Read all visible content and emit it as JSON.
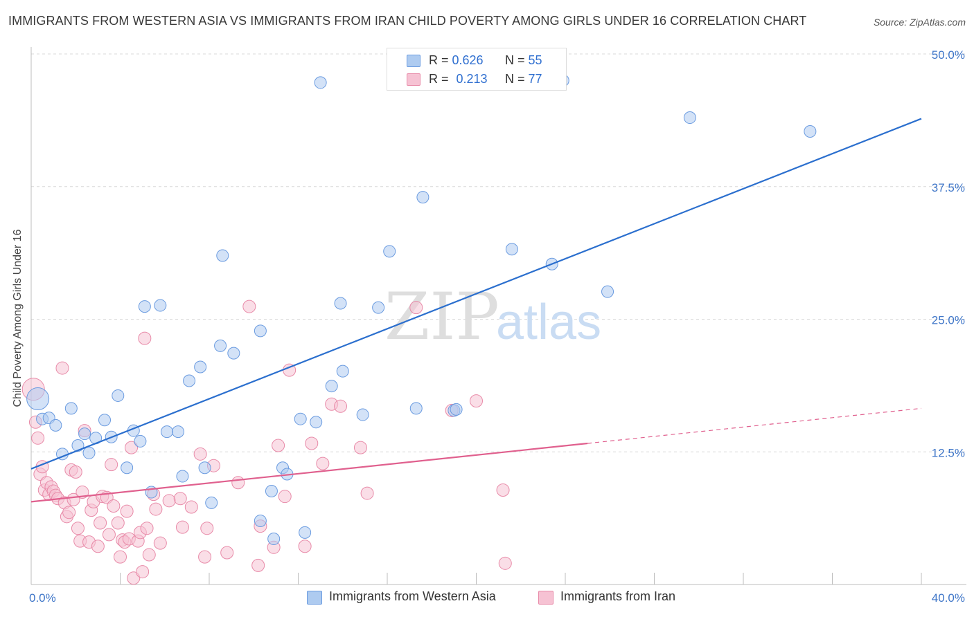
{
  "header": {
    "title": "IMMIGRANTS FROM WESTERN ASIA VS IMMIGRANTS FROM IRAN CHILD POVERTY AMONG GIRLS UNDER 16 CORRELATION CHART",
    "source": "Source: ZipAtlas.com"
  },
  "watermark": {
    "part1": "ZIP",
    "part2": "atlas"
  },
  "legend": {
    "rows": [
      {
        "r_label": "R = ",
        "r_value": "0.626",
        "n_label": "N = ",
        "n_value": "55"
      },
      {
        "r_label": "R = ",
        "r_value": "0.213",
        "n_label": "N = ",
        "n_value": "77"
      }
    ]
  },
  "bottom_legend": {
    "western_asia": "Immigrants from Western Asia",
    "iran": "Immigrants from Iran"
  },
  "colors": {
    "blue_fill": "#aecbf0",
    "blue_stroke": "#6a9be0",
    "blue_line": "#2b6fce",
    "pink_fill": "#f6c2d3",
    "pink_stroke": "#e88aa8",
    "pink_line": "#e0608e",
    "grid": "#d8d8d8",
    "axis_text": "#3f76c8"
  },
  "chart_data": {
    "type": "scatter",
    "title": "IMMIGRANTS FROM WESTERN ASIA VS IMMIGRANTS FROM IRAN CHILD POVERTY AMONG GIRLS UNDER 16 CORRELATION CHART",
    "xlabel": "",
    "ylabel": "Child Poverty Among Girls Under 16",
    "xlim": [
      0,
      40
    ],
    "ylim": [
      0,
      50
    ],
    "x_tick_labels": [
      "0.0%",
      "40.0%"
    ],
    "y_ticks": [
      12.5,
      25.0,
      37.5,
      50.0
    ],
    "y_tick_labels": [
      "12.5%",
      "25.0%",
      "37.5%",
      "50.0%"
    ],
    "grid": "horizontal dashed",
    "legend_position": "top-center",
    "series": [
      {
        "name": "Immigrants from Western Asia",
        "color": "#aecbf0",
        "trend": {
          "x": [
            0,
            40
          ],
          "y": [
            10.9,
            43.9
          ]
        },
        "points": [
          [
            0.3,
            17.5
          ],
          [
            0.5,
            15.6
          ],
          [
            0.8,
            15.7
          ],
          [
            1.1,
            15.0
          ],
          [
            1.4,
            12.3
          ],
          [
            1.8,
            16.6
          ],
          [
            2.1,
            13.1
          ],
          [
            2.4,
            14.2
          ],
          [
            2.6,
            12.4
          ],
          [
            2.9,
            13.8
          ],
          [
            3.3,
            15.5
          ],
          [
            3.6,
            13.9
          ],
          [
            3.9,
            17.8
          ],
          [
            4.3,
            11.0
          ],
          [
            4.6,
            14.5
          ],
          [
            4.9,
            13.5
          ],
          [
            5.1,
            26.2
          ],
          [
            5.4,
            8.7
          ],
          [
            5.8,
            26.3
          ],
          [
            6.1,
            14.4
          ],
          [
            6.6,
            14.4
          ],
          [
            6.8,
            10.2
          ],
          [
            7.1,
            19.2
          ],
          [
            7.6,
            20.5
          ],
          [
            7.8,
            11.0
          ],
          [
            8.1,
            7.7
          ],
          [
            8.5,
            22.5
          ],
          [
            8.6,
            31.0
          ],
          [
            9.1,
            21.8
          ],
          [
            10.3,
            23.9
          ],
          [
            10.3,
            6.0
          ],
          [
            10.8,
            8.8
          ],
          [
            10.9,
            4.3
          ],
          [
            11.3,
            11.0
          ],
          [
            11.5,
            10.4
          ],
          [
            12.1,
            15.6
          ],
          [
            12.3,
            4.9
          ],
          [
            12.8,
            15.3
          ],
          [
            13.0,
            47.3
          ],
          [
            13.5,
            18.7
          ],
          [
            13.9,
            26.5
          ],
          [
            14.0,
            20.1
          ],
          [
            14.9,
            16.0
          ],
          [
            15.6,
            26.1
          ],
          [
            16.1,
            31.4
          ],
          [
            17.3,
            16.6
          ],
          [
            17.6,
            36.5
          ],
          [
            19.0,
            16.4
          ],
          [
            21.6,
            31.6
          ],
          [
            23.4,
            30.2
          ],
          [
            23.9,
            47.5
          ],
          [
            25.9,
            27.6
          ],
          [
            29.6,
            44.0
          ],
          [
            35.0,
            42.7
          ],
          [
            19.1,
            16.5
          ]
        ]
      },
      {
        "name": "Immigrants from Iran",
        "color": "#f6c2d3",
        "trend": {
          "x": [
            0,
            25
          ],
          "y": [
            7.8,
            13.3
          ]
        },
        "trend_dashed": {
          "x": [
            25,
            40
          ],
          "y": [
            13.3,
            16.6
          ]
        },
        "points": [
          [
            0.1,
            18.4
          ],
          [
            0.2,
            15.3
          ],
          [
            0.3,
            13.8
          ],
          [
            0.4,
            10.4
          ],
          [
            0.5,
            11.1
          ],
          [
            0.6,
            8.9
          ],
          [
            0.7,
            9.6
          ],
          [
            0.8,
            8.5
          ],
          [
            0.9,
            9.2
          ],
          [
            1.0,
            8.8
          ],
          [
            1.1,
            8.4
          ],
          [
            1.2,
            8.1
          ],
          [
            1.4,
            20.4
          ],
          [
            1.5,
            7.7
          ],
          [
            1.6,
            6.4
          ],
          [
            1.7,
            6.8
          ],
          [
            1.8,
            10.8
          ],
          [
            1.9,
            8.0
          ],
          [
            2.0,
            10.6
          ],
          [
            2.1,
            5.3
          ],
          [
            2.2,
            4.1
          ],
          [
            2.3,
            8.7
          ],
          [
            2.4,
            14.5
          ],
          [
            2.6,
            4.0
          ],
          [
            2.7,
            7.0
          ],
          [
            2.8,
            7.8
          ],
          [
            3.0,
            3.6
          ],
          [
            3.1,
            5.8
          ],
          [
            3.2,
            8.3
          ],
          [
            3.4,
            8.2
          ],
          [
            3.5,
            4.7
          ],
          [
            3.6,
            11.3
          ],
          [
            3.7,
            7.4
          ],
          [
            3.9,
            5.8
          ],
          [
            4.0,
            2.6
          ],
          [
            4.1,
            4.2
          ],
          [
            4.2,
            4.0
          ],
          [
            4.3,
            6.9
          ],
          [
            4.4,
            4.3
          ],
          [
            4.5,
            12.9
          ],
          [
            4.6,
            0.6
          ],
          [
            4.8,
            4.1
          ],
          [
            4.9,
            4.9
          ],
          [
            5.0,
            1.2
          ],
          [
            5.1,
            23.2
          ],
          [
            5.2,
            5.3
          ],
          [
            5.3,
            2.8
          ],
          [
            5.5,
            8.5
          ],
          [
            5.6,
            7.1
          ],
          [
            5.8,
            3.9
          ],
          [
            6.2,
            7.9
          ],
          [
            6.7,
            8.1
          ],
          [
            6.8,
            5.4
          ],
          [
            7.2,
            7.3
          ],
          [
            7.6,
            12.3
          ],
          [
            7.8,
            2.6
          ],
          [
            7.9,
            5.3
          ],
          [
            8.2,
            11.2
          ],
          [
            8.8,
            3.0
          ],
          [
            9.3,
            9.6
          ],
          [
            9.8,
            26.2
          ],
          [
            10.2,
            1.8
          ],
          [
            10.3,
            5.5
          ],
          [
            10.9,
            3.5
          ],
          [
            11.1,
            13.1
          ],
          [
            11.4,
            8.3
          ],
          [
            11.6,
            20.2
          ],
          [
            12.3,
            3.6
          ],
          [
            12.6,
            13.3
          ],
          [
            13.1,
            11.4
          ],
          [
            13.5,
            17.0
          ],
          [
            13.9,
            16.8
          ],
          [
            14.8,
            12.9
          ],
          [
            15.1,
            8.6
          ],
          [
            17.3,
            26.1
          ],
          [
            21.2,
            8.9
          ],
          [
            21.3,
            2.0
          ]
        ]
      }
    ],
    "extra_iran_points": [
      [
        18.9,
        16.4
      ],
      [
        20.0,
        17.3
      ]
    ]
  }
}
